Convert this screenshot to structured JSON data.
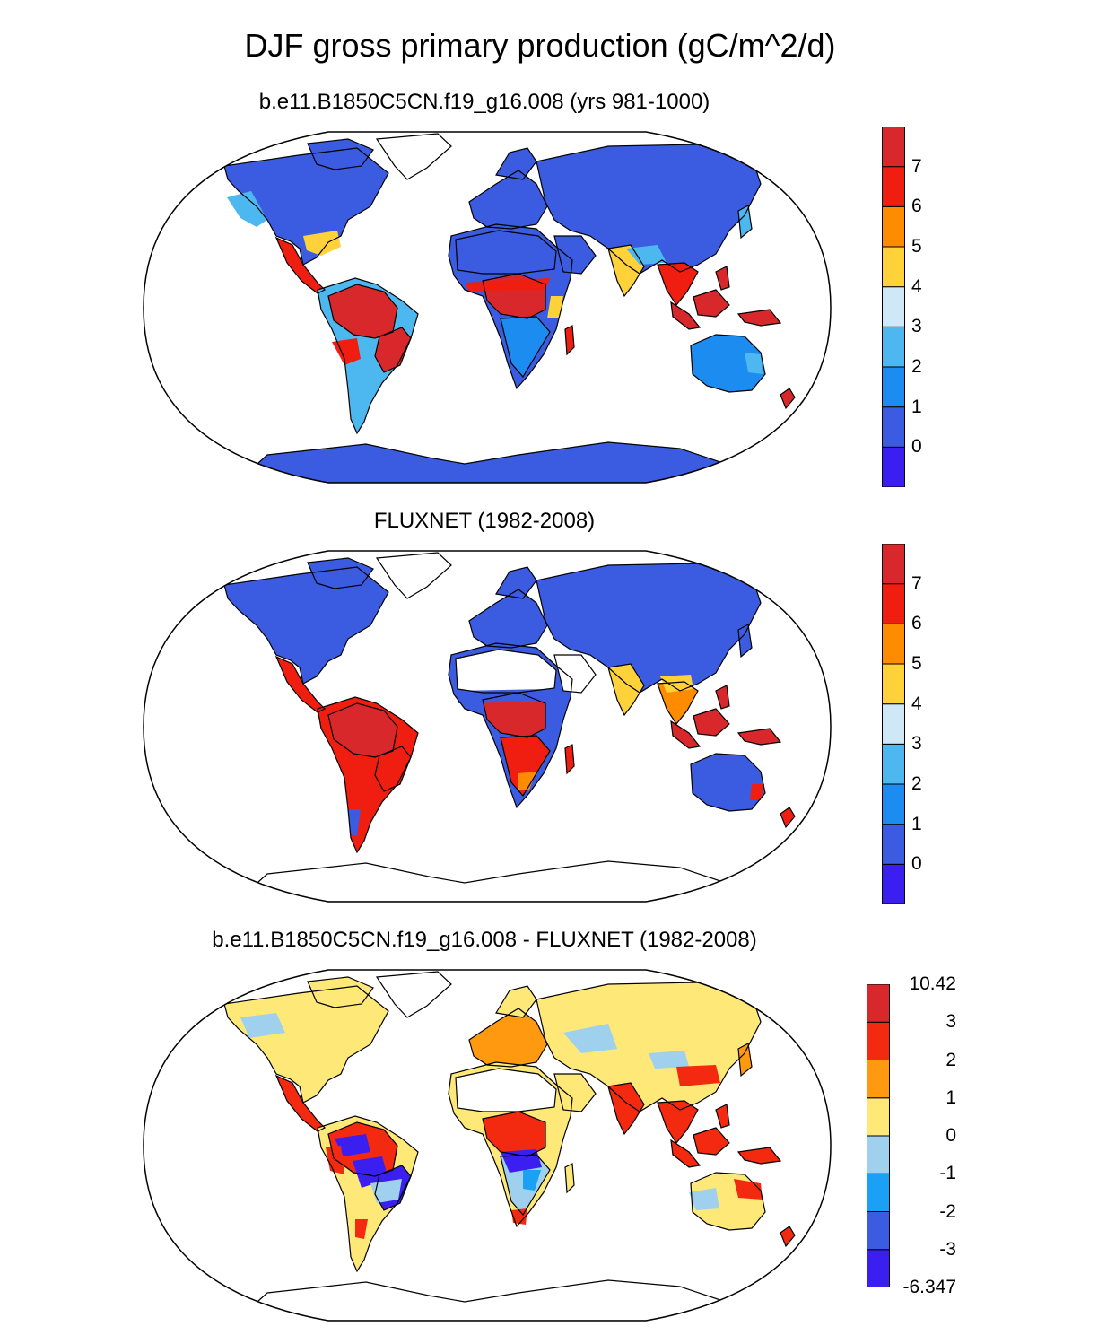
{
  "title": "DJF gross primary production (gC/m^2/d)",
  "panels": [
    {
      "subtitle": "b.e11.B1850C5CN.f19_g16.008 (yrs 981-1000)",
      "map_kind": "model",
      "colorbar": {
        "colors": [
          "#3b1ff0",
          "#3b5ce0",
          "#1c8cf0",
          "#4db8f0",
          "#cfe8f5",
          "#ffd23a",
          "#ff8c00",
          "#f01e10",
          "#d8282b"
        ],
        "labels": [
          "0",
          "1",
          "2",
          "3",
          "4",
          "5",
          "6",
          "7"
        ]
      }
    },
    {
      "subtitle": "FLUXNET (1982-2008)",
      "map_kind": "obs",
      "colorbar": {
        "colors": [
          "#3b1ff0",
          "#3b5ce0",
          "#1c8cf0",
          "#4db8f0",
          "#cfe8f5",
          "#ffd23a",
          "#ff8c00",
          "#f01e10",
          "#d8282b"
        ],
        "labels": [
          "0",
          "1",
          "2",
          "3",
          "4",
          "5",
          "6",
          "7"
        ]
      }
    },
    {
      "subtitle": "b.e11.B1850C5CN.f19_g16.008 - FLUXNET (1982-2008)",
      "map_kind": "diff",
      "colorbar": {
        "colors": [
          "#3b1ff0",
          "#3b5ce0",
          "#1aa0f5",
          "#9fd0ee",
          "#fde878",
          "#ff9a10",
          "#f32a10",
          "#d8282b"
        ],
        "labels": [
          "-6.347",
          "-3",
          "-2",
          "-1",
          "0",
          "1",
          "2",
          "3",
          "10.42"
        ]
      }
    }
  ]
}
